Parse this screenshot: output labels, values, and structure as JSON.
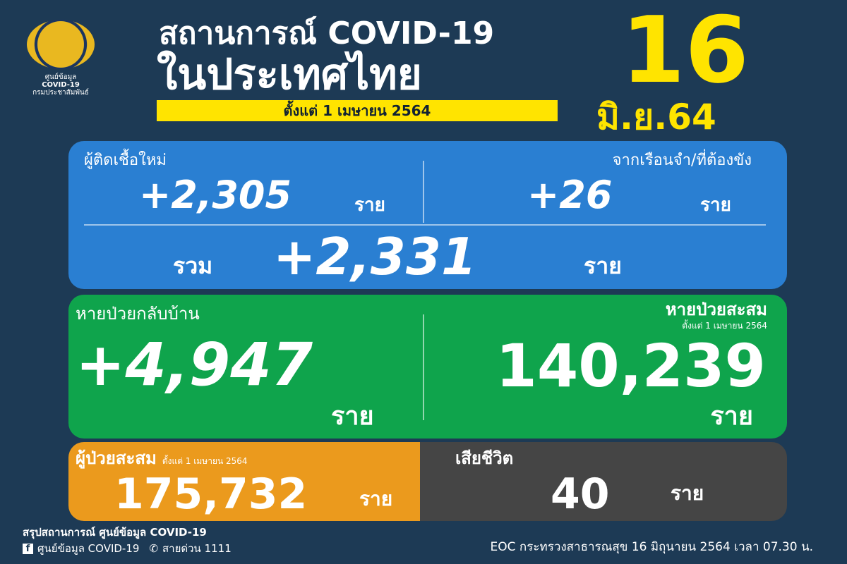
{
  "logo": {
    "line1": "ศูนย์ข้อมูล",
    "line2": "COVID-19",
    "line3": "กรมประชาสัมพันธ์"
  },
  "header": {
    "title_line1": "สถานการณ์ COVID-19",
    "title_line2": "ในประเทศไทย",
    "since": "ตั้งแต่ 1 เมษายน 2564",
    "day": "16",
    "month_year": "มิ.ย.64"
  },
  "new_cases": {
    "label": "ผู้ติดเชื้อใหม่",
    "value": "+2,305",
    "unit": "ราย"
  },
  "prison_cases": {
    "label": "จากเรือนจำ/ที่ต้องขัง",
    "value": "+26",
    "unit": "ราย"
  },
  "total_new": {
    "label": "รวม",
    "value": "+2,331",
    "unit": "ราย"
  },
  "recovered_today": {
    "label": "หายป่วยกลับบ้าน",
    "value": "+4,947",
    "unit": "ราย"
  },
  "recovered_cumulative": {
    "label": "หายป่วยสะสม",
    "sublabel": "ตั้งแต่ 1 เมษายน 2564",
    "value": "140,239",
    "unit": "ราย"
  },
  "cumulative_cases": {
    "label": "ผู้ป่วยสะสม",
    "sublabel": "ตั้งแต่ 1 เมษายน 2564",
    "value": "175,732",
    "unit": "ราย"
  },
  "deaths": {
    "label": "เสียชีวิต",
    "value": "40",
    "unit": "ราย"
  },
  "footer": {
    "summary": "สรุปสถานการณ์ ศูนย์ข้อมูล COVID-19",
    "facebook": "ศูนย์ข้อมูล COVID-19",
    "hotline": "สายด่วน 1111",
    "source": "EOC กระทรวงสาธารณสุข 16 มิถุนายน 2564 เวลา 07.30 น."
  },
  "colors": {
    "background": "#1d3a55",
    "blue": "#2a7fd2",
    "green": "#0fa44c",
    "orange": "#eb9a1d",
    "grey": "#454545",
    "yellow": "#ffe400"
  }
}
